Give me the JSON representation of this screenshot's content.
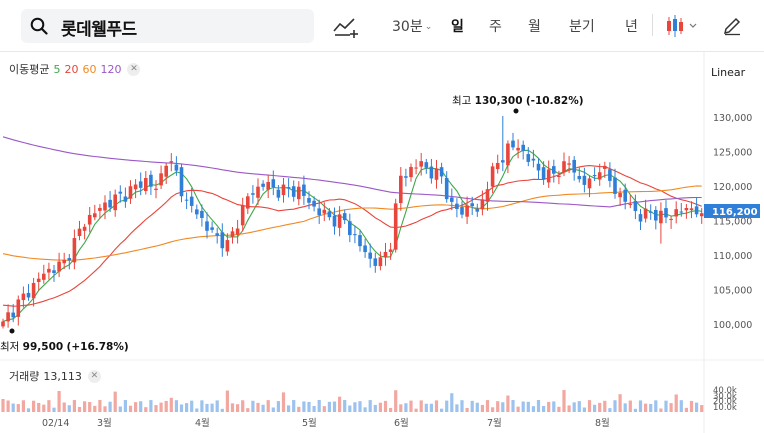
{
  "search": {
    "query": "롯데웰푸드"
  },
  "periods": [
    {
      "label": "30분",
      "has_dropdown": true,
      "active": false
    },
    {
      "label": "일",
      "has_dropdown": false,
      "active": true
    },
    {
      "label": "주",
      "has_dropdown": false,
      "active": false
    },
    {
      "label": "월",
      "has_dropdown": false,
      "active": false
    },
    {
      "label": "분기",
      "has_dropdown": false,
      "active": false
    },
    {
      "label": "년",
      "has_dropdown": false,
      "active": false
    }
  ],
  "icons": {
    "search": "search-icon",
    "draw": "draw-line-icon",
    "chart_type": "candlestick-icon",
    "edit": "pencil-icon"
  },
  "legend": {
    "ma_label": "이동평균",
    "ma_periods": [
      {
        "period": "5",
        "color": "#40a84a"
      },
      {
        "period": "20",
        "color": "#e8453c"
      },
      {
        "period": "60",
        "color": "#f08a24"
      },
      {
        "period": "120",
        "color": "#9b59c6"
      }
    ],
    "scale": "Linear",
    "volume_label": "거래량",
    "volume_value": "13,113"
  },
  "colors": {
    "up": "#e8453c",
    "down": "#2f7fd8",
    "last_price_bg": "#2f7fd8",
    "max_marker": "#111"
  },
  "chart_data": {
    "type": "candlestick",
    "title": "",
    "ylim": [
      97000,
      134000
    ],
    "y_ticks": [
      "130,000",
      "125,000",
      "120,000",
      "115,000",
      "110,000",
      "105,000",
      "100,000"
    ],
    "x_ticks": [
      "02/14",
      "3월",
      "4월",
      "5월",
      "6월",
      "7월",
      "8월"
    ],
    "last_price": "116,200",
    "annotations": {
      "high": {
        "label": "최고",
        "value": "130,300",
        "change": "(-10.82%)"
      },
      "low": {
        "label": "최저",
        "value": "99,500",
        "change": "(+16.78%)"
      }
    },
    "volume_ticks": [
      "40.0k",
      "30.0k",
      "20.0k",
      "10.0k"
    ],
    "close_points": [
      [
        0,
        100500
      ],
      [
        4,
        104000
      ],
      [
        8,
        107500
      ],
      [
        12,
        109000
      ],
      [
        16,
        115000
      ],
      [
        20,
        117500
      ],
      [
        24,
        119000
      ],
      [
        28,
        121000
      ],
      [
        30,
        119500
      ],
      [
        32,
        124000
      ],
      [
        34,
        122000
      ],
      [
        36,
        117500
      ],
      [
        38,
        116500
      ],
      [
        40,
        114000
      ],
      [
        44,
        111500
      ],
      [
        46,
        115000
      ],
      [
        48,
        118500
      ],
      [
        51,
        120500
      ],
      [
        54,
        119500
      ],
      [
        58,
        119500
      ],
      [
        61,
        117000
      ],
      [
        64,
        115500
      ],
      [
        67,
        115000
      ],
      [
        70,
        111500
      ],
      [
        72,
        109500
      ],
      [
        74,
        109000
      ],
      [
        76,
        112000
      ],
      [
        78,
        121500
      ],
      [
        80,
        122500
      ],
      [
        82,
        123500
      ],
      [
        84,
        122000
      ],
      [
        86,
        121500
      ],
      [
        88,
        117000
      ],
      [
        90,
        116500
      ],
      [
        92,
        117500
      ],
      [
        93,
        116000
      ],
      [
        95,
        120500
      ],
      [
        97,
        123500
      ],
      [
        99,
        125500
      ],
      [
        101,
        126000
      ],
      [
        103,
        124000
      ],
      [
        105,
        122500
      ],
      [
        107,
        121500
      ],
      [
        109,
        122500
      ],
      [
        111,
        123500
      ],
      [
        113,
        121000
      ],
      [
        115,
        120500
      ],
      [
        117,
        123000
      ],
      [
        119,
        121000
      ],
      [
        121,
        118500
      ],
      [
        123,
        117500
      ],
      [
        125,
        115500
      ],
      [
        127,
        116500
      ],
      [
        129,
        115500
      ],
      [
        131,
        116000
      ],
      [
        133,
        116500
      ],
      [
        135,
        117000
      ],
      [
        137,
        116200
      ]
    ],
    "high_day_index": 98,
    "low_day_index": 0
  }
}
